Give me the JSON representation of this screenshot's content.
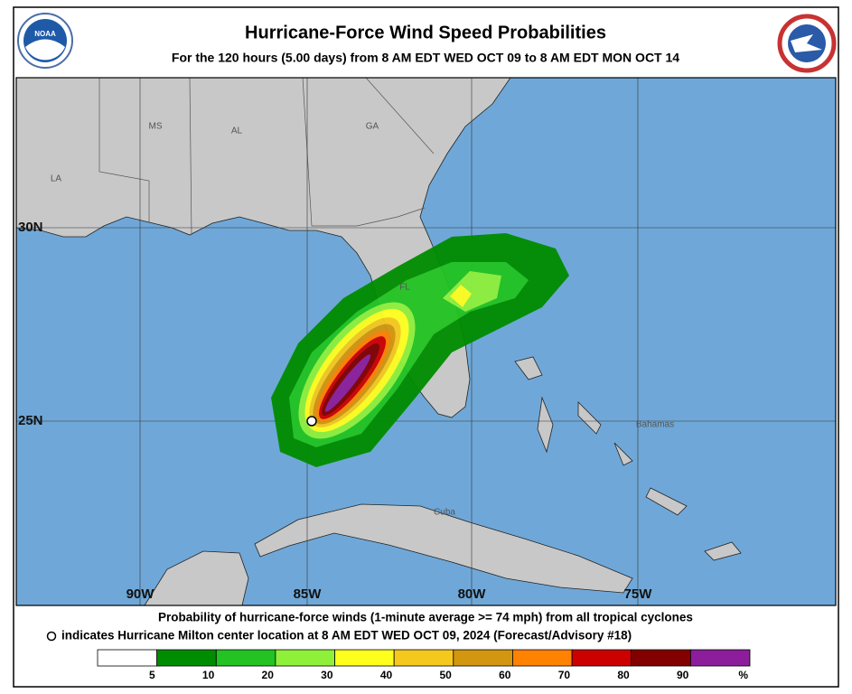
{
  "header": {
    "title": "Hurricane-Force Wind Speed Probabilities",
    "subtitle": "For the 120 hours (5.00 days) from 8 AM EDT WED OCT 09 to 8 AM EDT MON OCT 14"
  },
  "map": {
    "state_labels": [
      "MS",
      "AL",
      "GA",
      "LA",
      "FL"
    ],
    "place_labels": [
      "Bahamas",
      "Cuba"
    ],
    "lat_labels": [
      "30N",
      "25N"
    ],
    "lon_labels": [
      "90W",
      "85W",
      "80W",
      "75W"
    ]
  },
  "footer": {
    "line1": "Probability of hurricane-force winds (1-minute average >= 74 mph) from all tropical cyclones",
    "line2": "indicates Hurricane Milton center location at 8 AM EDT WED OCT 09, 2024 (Forecast/Advisory #18)"
  },
  "legend": {
    "colors": [
      "#ffffff",
      "#008c00",
      "#22c322",
      "#8ff03a",
      "#ffff1e",
      "#f5c81e",
      "#d2960f",
      "#ff8200",
      "#cd0000",
      "#820000",
      "#8c1e9b"
    ],
    "ticks": [
      5,
      10,
      20,
      30,
      40,
      50,
      60,
      70,
      80,
      90
    ],
    "unit": "%"
  }
}
